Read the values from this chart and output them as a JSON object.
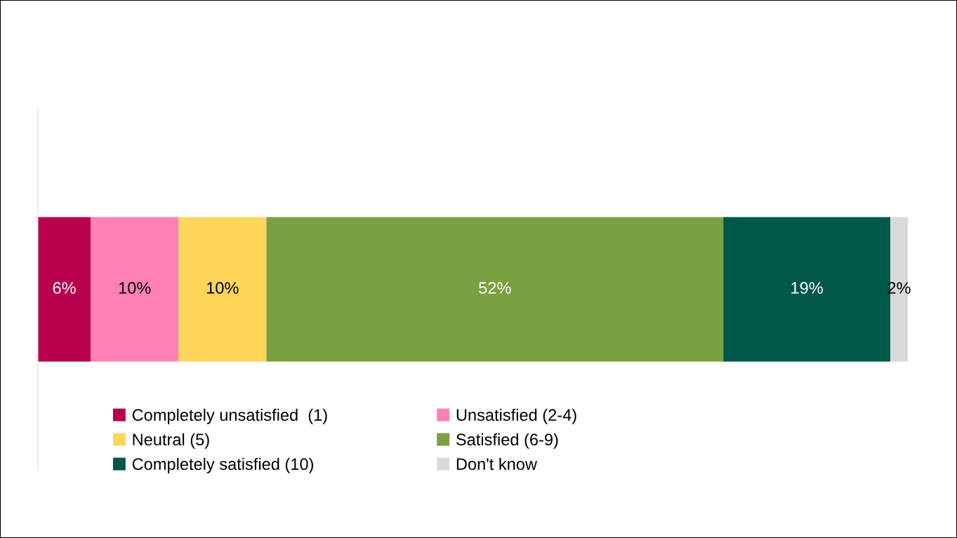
{
  "chart_data": {
    "type": "bar",
    "orientation": "horizontal",
    "stacked": true,
    "categories": [
      null
    ],
    "series": [
      {
        "name": "Completely unsatisfied  (1)",
        "color": "#b8004d",
        "values": [
          6
        ],
        "value_labels": [
          "6%"
        ]
      },
      {
        "name": "Unsatisfied (2-4)",
        "color": "#ff80b4",
        "values": [
          10
        ],
        "value_labels": [
          "10%"
        ]
      },
      {
        "name": "Neutral (5)",
        "color": "#ffd55a",
        "values": [
          10
        ],
        "value_labels": [
          "10%"
        ]
      },
      {
        "name": "Satisfied (6-9)",
        "color": "#7aa042",
        "values": [
          52
        ],
        "value_labels": [
          "52%"
        ]
      },
      {
        "name": "Completely satisfied (10)",
        "color": "#00584a",
        "values": [
          19
        ],
        "value_labels": [
          "19%"
        ]
      },
      {
        "name": "Don't know",
        "color": "#d9d9d9",
        "values": [
          2
        ],
        "value_labels": [
          "2%"
        ]
      }
    ],
    "tick_labels": false,
    "grid": false,
    "legend": "bottom"
  }
}
